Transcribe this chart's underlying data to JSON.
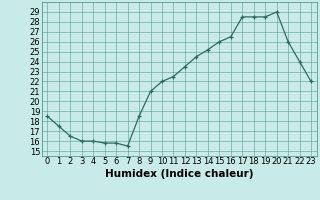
{
  "x": [
    0,
    1,
    2,
    3,
    4,
    5,
    6,
    7,
    8,
    9,
    10,
    11,
    12,
    13,
    14,
    15,
    16,
    17,
    18,
    19,
    20,
    21,
    22,
    23
  ],
  "y": [
    18.5,
    17.5,
    16.5,
    16.0,
    16.0,
    15.8,
    15.8,
    15.5,
    18.5,
    21.0,
    22.0,
    22.5,
    23.5,
    24.5,
    25.2,
    26.0,
    26.5,
    28.5,
    28.5,
    28.5,
    29.0,
    26.0,
    24.0,
    22.0
  ],
  "xlabel": "Humidex (Indice chaleur)",
  "xlim": [
    -0.5,
    23.5
  ],
  "ylim": [
    14.5,
    30
  ],
  "yticks": [
    15,
    16,
    17,
    18,
    19,
    20,
    21,
    22,
    23,
    24,
    25,
    26,
    27,
    28,
    29
  ],
  "xticks": [
    0,
    1,
    2,
    3,
    4,
    5,
    6,
    7,
    8,
    9,
    10,
    11,
    12,
    13,
    14,
    15,
    16,
    17,
    18,
    19,
    20,
    21,
    22,
    23
  ],
  "xtick_labels": [
    "0",
    "1",
    "2",
    "3",
    "4",
    "5",
    "6",
    "7",
    "8",
    "9",
    "10",
    "11",
    "12",
    "13",
    "14",
    "15",
    "16",
    "17",
    "18",
    "19",
    "20",
    "21",
    "22",
    "23"
  ],
  "line_color": "#2d6b5e",
  "marker": "+",
  "bg_color": "#c8eae8",
  "grid_color": "#3d8b7a",
  "label_fontsize": 7.5,
  "tick_fontsize": 6.0
}
